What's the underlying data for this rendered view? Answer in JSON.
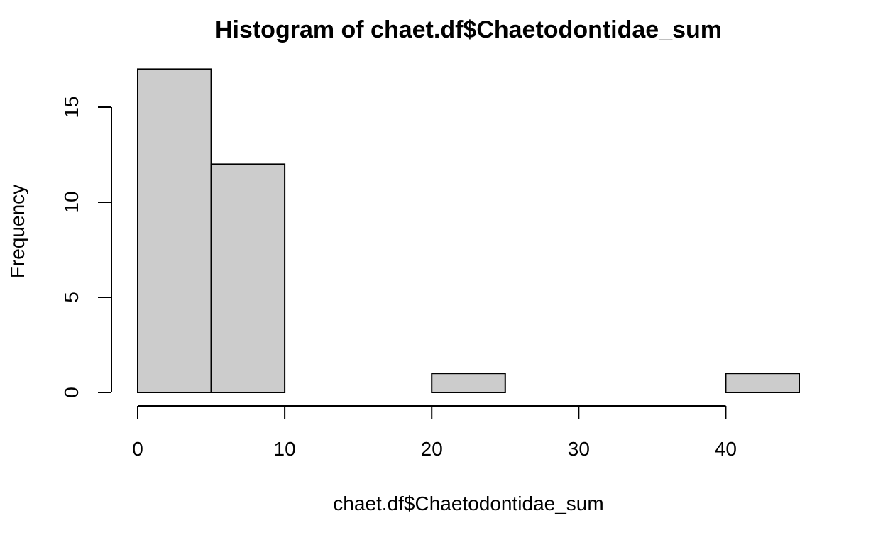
{
  "chart_data": {
    "type": "histogram",
    "title": "Histogram of chaet.df$Chaetodontidae_sum",
    "xlabel": "chaet.df$Chaetodontidae_sum",
    "ylabel": "Frequency",
    "bins": [
      {
        "start": 0,
        "end": 5,
        "count": 17
      },
      {
        "start": 5,
        "end": 10,
        "count": 12
      },
      {
        "start": 10,
        "end": 15,
        "count": 0
      },
      {
        "start": 15,
        "end": 20,
        "count": 0
      },
      {
        "start": 20,
        "end": 25,
        "count": 1
      },
      {
        "start": 25,
        "end": 30,
        "count": 0
      },
      {
        "start": 30,
        "end": 35,
        "count": 0
      },
      {
        "start": 35,
        "end": 40,
        "count": 0
      },
      {
        "start": 40,
        "end": 45,
        "count": 1
      }
    ],
    "xlim": [
      0,
      45
    ],
    "ylim": [
      0,
      17
    ],
    "x_ticks": [
      0,
      10,
      20,
      30,
      40
    ],
    "y_ticks": [
      0,
      5,
      10,
      15
    ],
    "grid": false,
    "legend": "none",
    "bar_color": "#cccccc",
    "edge_color": "#000000"
  }
}
